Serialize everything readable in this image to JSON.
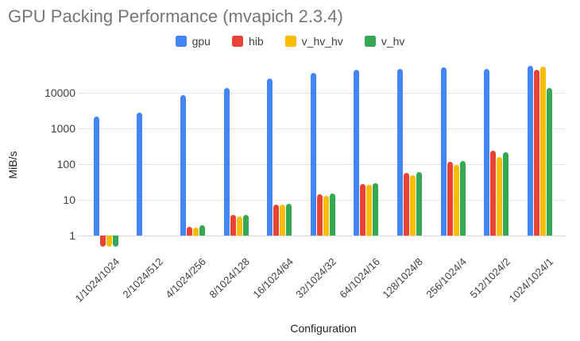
{
  "title": "GPU Packing Performance (mvapich 2.3.4)",
  "legend": [
    {
      "label": "gpu",
      "color": "#4285f4"
    },
    {
      "label": "hib",
      "color": "#ea4335"
    },
    {
      "label": "v_hv_hv",
      "color": "#fbbc04"
    },
    {
      "label": "v_hv",
      "color": "#34a853"
    }
  ],
  "axes": {
    "y_title": "MiB/s",
    "x_title": "Configuration",
    "y_ticks": [
      "10000",
      "1000",
      "100",
      "10",
      "1"
    ]
  },
  "chart_data": {
    "type": "bar",
    "title": "GPU Packing Performance (mvapich 2.3.4)",
    "xlabel": "Configuration",
    "ylabel": "MiB/s",
    "y_scale": "log10",
    "ylim": [
      0.4,
      70000
    ],
    "grid": "horizontal-decades",
    "legend_position": "top-center",
    "gridline_values": [
      10000,
      1000,
      100,
      10,
      1
    ],
    "baseline_value": 1,
    "categories": [
      "1/1024/1024",
      "2/1024/512",
      "4/1024/256",
      "8/1024/128",
      "16/1024/64",
      "32/1024/32",
      "64/1024/16",
      "128/1024/8",
      "256/1024/4",
      "512/1024/2",
      "1024/1024/1"
    ],
    "series": [
      {
        "name": "gpu",
        "color": "#4285f4",
        "values": [
          2200,
          2800,
          8500,
          13500,
          25000,
          36000,
          43000,
          47000,
          52000,
          47000,
          58000
        ]
      },
      {
        "name": "hib",
        "color": "#ea4335",
        "values": [
          0.5,
          null,
          1.8,
          3.7,
          7.5,
          14,
          28,
          58,
          118,
          240,
          45000
        ]
      },
      {
        "name": "v_hv_hv",
        "color": "#fbbc04",
        "values": [
          0.5,
          null,
          1.7,
          3.4,
          7.2,
          13,
          26,
          50,
          95,
          160,
          55000
        ]
      },
      {
        "name": "v_hv",
        "color": "#34a853",
        "values": [
          0.5,
          null,
          1.9,
          3.8,
          7.9,
          15,
          30,
          61,
          121,
          220,
          13500
        ]
      }
    ]
  }
}
